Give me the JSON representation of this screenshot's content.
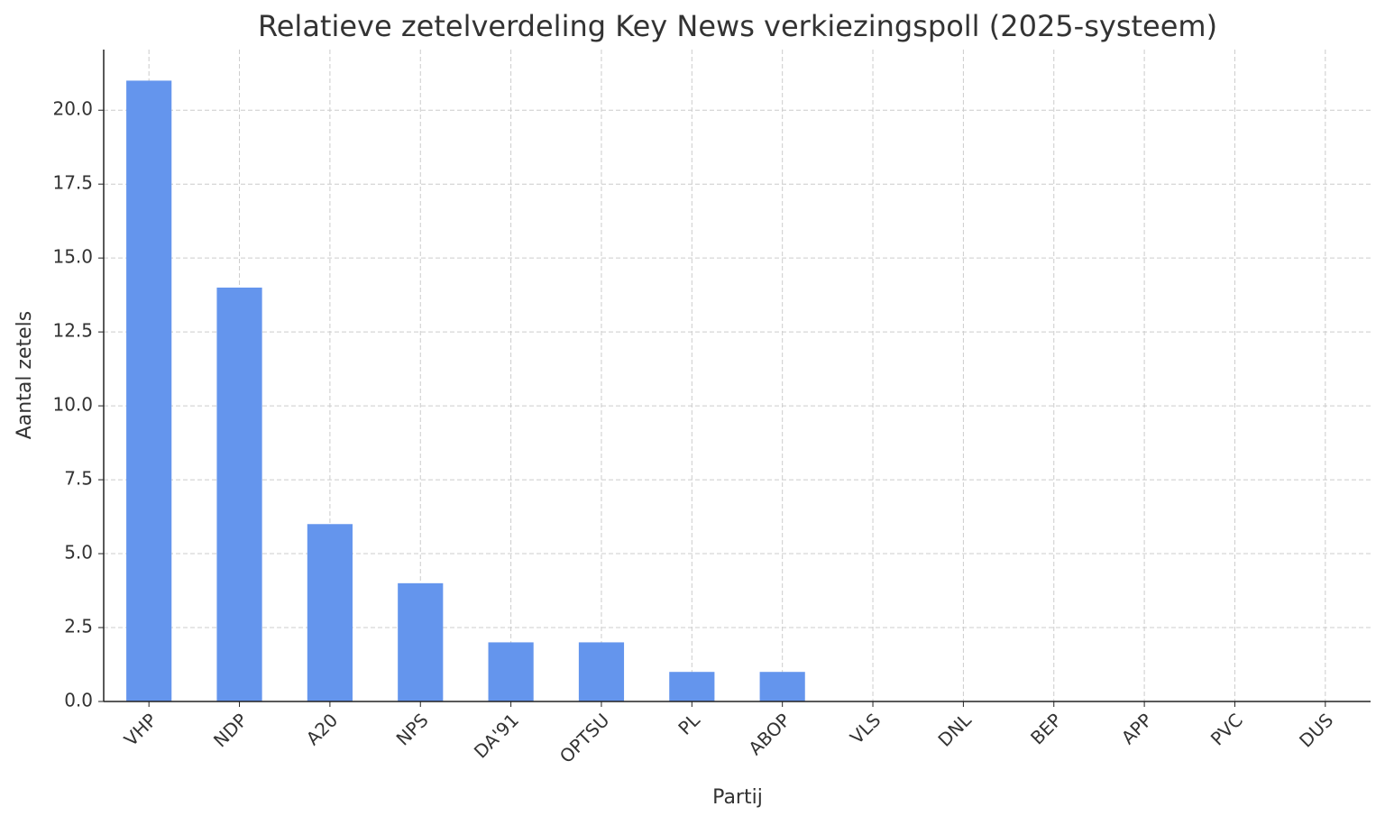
{
  "chart_data": {
    "type": "bar",
    "title": "Relatieve zetelverdeling Key News verkiezingspoll (2025-systeem)",
    "x_label": "Partij",
    "y_label": "Aantal zetels",
    "categories": [
      "VHP",
      "NDP",
      "A20",
      "NPS",
      "DA'91",
      "OPTSU",
      "PL",
      "ABOP",
      "VLS",
      "DNL",
      "BEP",
      "APP",
      "PVC",
      "DUS"
    ],
    "values": [
      21,
      14,
      6,
      4,
      2,
      2,
      1,
      1,
      0,
      0,
      0,
      0,
      0,
      0
    ],
    "color": "#6495ed",
    "ylim": [
      0,
      22.05
    ],
    "yticks": [
      {
        "value": 0,
        "label": "0.0"
      },
      2.5,
      {
        "value": 5,
        "label": "5.0"
      },
      7.5,
      {
        "value": 10,
        "label": "10.0"
      },
      12.5,
      {
        "value": 15,
        "label": "15.0"
      },
      17.5,
      {
        "value": 20,
        "label": "20.0"
      }
    ],
    "grid": true
  }
}
